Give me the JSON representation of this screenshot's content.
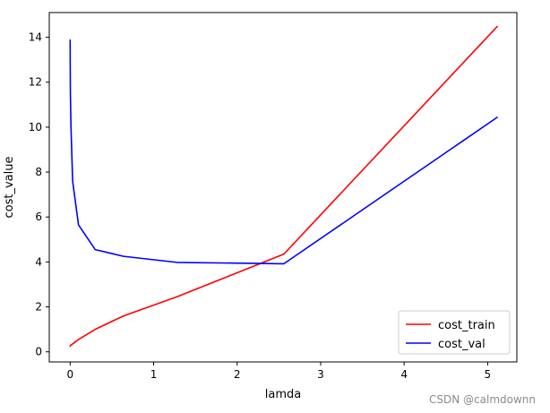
{
  "chart_data": {
    "type": "line",
    "title": "",
    "xlabel": "lamda",
    "ylabel": "cost_value",
    "xlim": [
      -0.25,
      5.35
    ],
    "ylim": [
      -0.45,
      15.1
    ],
    "xticks": [
      0,
      1,
      2,
      3,
      4,
      5
    ],
    "yticks": [
      0,
      2,
      4,
      6,
      8,
      10,
      12,
      14
    ],
    "grid": false,
    "legend": "bottom-right",
    "x": [
      0,
      0.001,
      0.003,
      0.01,
      0.03,
      0.1,
      0.3,
      0.64,
      1.28,
      2.56,
      5.12
    ],
    "series": [
      {
        "name": "cost_train",
        "color": "#ff0000",
        "values": [
          0.22,
          0.25,
          0.28,
          0.3,
          0.35,
          0.55,
          1.0,
          1.6,
          2.45,
          4.35,
          14.5
        ]
      },
      {
        "name": "cost_val",
        "color": "#0000ff",
        "values": [
          13.9,
          12.8,
          11.5,
          10.0,
          7.6,
          5.65,
          4.55,
          4.25,
          3.98,
          3.92,
          10.45
        ]
      }
    ]
  },
  "watermark": "CSDN @calmdownn"
}
